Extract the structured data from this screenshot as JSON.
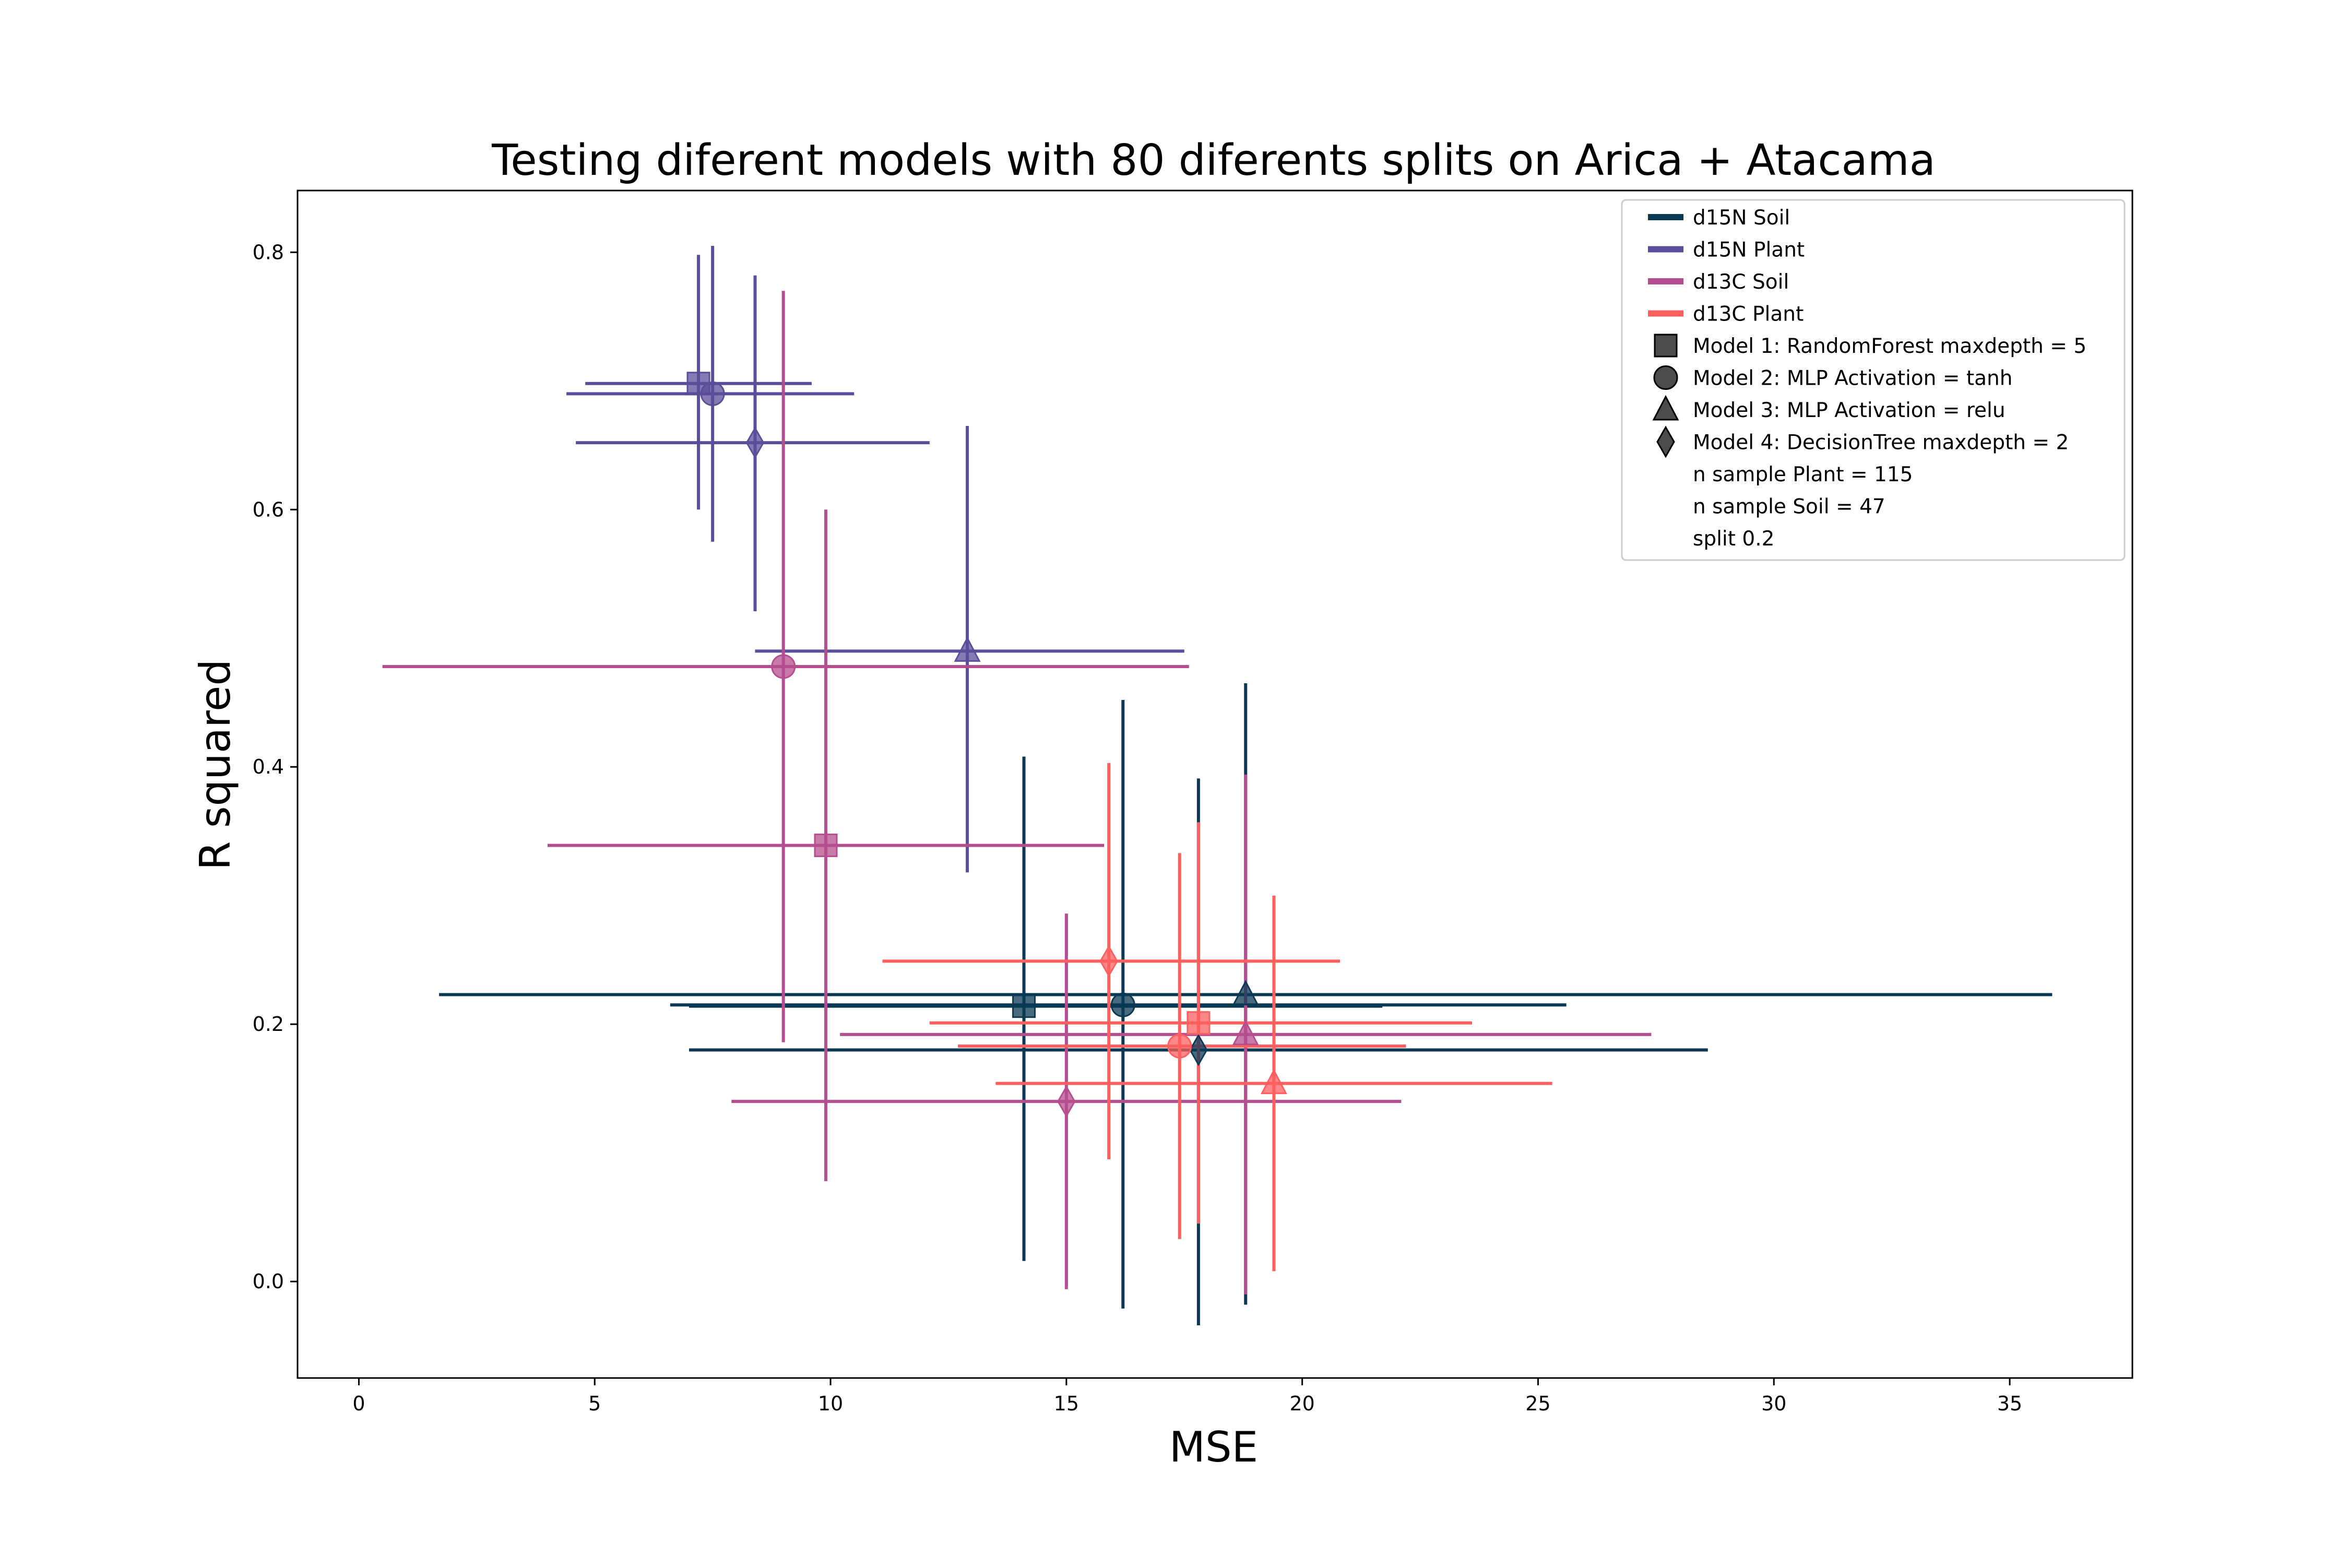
{
  "chart_data": {
    "type": "scatter",
    "title": "Testing diferent models with 80 diferents splits on Arica + Atacama",
    "xlabel": "MSE",
    "ylabel": "R squared",
    "xlim": [
      -1.3,
      37.6
    ],
    "ylim": [
      -0.075,
      0.848
    ],
    "xticks": [
      0,
      5,
      10,
      15,
      20,
      25,
      30,
      35
    ],
    "yticks": [
      0.0,
      0.2,
      0.4,
      0.6,
      0.8
    ],
    "xtick_labels": [
      "0",
      "5",
      "10",
      "15",
      "20",
      "25",
      "30",
      "35"
    ],
    "ytick_labels": [
      "0.0",
      "0.2",
      "0.4",
      "0.6",
      "0.8"
    ],
    "grid": false,
    "legend_position": "top-right",
    "series": [
      {
        "name": "d15N Soil",
        "color": "#0b3954",
        "points": [
          {
            "model": 1,
            "marker": "square",
            "x": 14.1,
            "y": 0.214,
            "xerr_low": 7.0,
            "xerr_high": 21.7,
            "yerr_low": 0.016,
            "yerr_high": 0.408
          },
          {
            "model": 2,
            "marker": "circle",
            "x": 16.2,
            "y": 0.215,
            "xerr_low": 6.6,
            "xerr_high": 25.6,
            "yerr_low": -0.021,
            "yerr_high": 0.452
          },
          {
            "model": 3,
            "marker": "triangle",
            "x": 18.8,
            "y": 0.223,
            "xerr_low": 1.7,
            "xerr_high": 35.9,
            "yerr_low": -0.018,
            "yerr_high": 0.465
          },
          {
            "model": 4,
            "marker": "diamond",
            "x": 17.8,
            "y": 0.18,
            "xerr_low": 7.0,
            "xerr_high": 28.6,
            "yerr_low": -0.034,
            "yerr_high": 0.391
          }
        ]
      },
      {
        "name": "d15N Plant",
        "color": "#5c4d9a",
        "points": [
          {
            "model": 1,
            "marker": "square",
            "x": 7.2,
            "y": 0.698,
            "xerr_low": 4.8,
            "xerr_high": 9.6,
            "yerr_low": 0.6,
            "yerr_high": 0.798
          },
          {
            "model": 2,
            "marker": "circle",
            "x": 7.5,
            "y": 0.69,
            "xerr_low": 4.4,
            "xerr_high": 10.5,
            "yerr_low": 0.575,
            "yerr_high": 0.805
          },
          {
            "model": 3,
            "marker": "triangle",
            "x": 12.9,
            "y": 0.49,
            "xerr_low": 8.4,
            "xerr_high": 17.5,
            "yerr_low": 0.318,
            "yerr_high": 0.665
          },
          {
            "model": 4,
            "marker": "diamond",
            "x": 8.4,
            "y": 0.652,
            "xerr_low": 4.6,
            "xerr_high": 12.1,
            "yerr_low": 0.521,
            "yerr_high": 0.782
          }
        ]
      },
      {
        "name": "d13C Soil",
        "color": "#b64d8e",
        "points": [
          {
            "model": 1,
            "marker": "square",
            "x": 9.9,
            "y": 0.339,
            "xerr_low": 4.0,
            "xerr_high": 15.8,
            "yerr_low": 0.078,
            "yerr_high": 0.6
          },
          {
            "model": 2,
            "marker": "circle",
            "x": 9.0,
            "y": 0.478,
            "xerr_low": 0.5,
            "xerr_high": 17.6,
            "yerr_low": 0.186,
            "yerr_high": 0.77
          },
          {
            "model": 3,
            "marker": "triangle",
            "x": 18.8,
            "y": 0.192,
            "xerr_low": 10.2,
            "xerr_high": 27.4,
            "yerr_low": -0.01,
            "yerr_high": 0.394
          },
          {
            "model": 4,
            "marker": "diamond",
            "x": 15.0,
            "y": 0.14,
            "xerr_low": 7.9,
            "xerr_high": 22.1,
            "yerr_low": -0.006,
            "yerr_high": 0.286
          }
        ]
      },
      {
        "name": "d13C Plant",
        "color": "#fe5f5f",
        "points": [
          {
            "model": 1,
            "marker": "square",
            "x": 17.8,
            "y": 0.201,
            "xerr_low": 12.1,
            "xerr_high": 23.6,
            "yerr_low": 0.045,
            "yerr_high": 0.357
          },
          {
            "model": 2,
            "marker": "circle",
            "x": 17.4,
            "y": 0.183,
            "xerr_low": 12.7,
            "xerr_high": 22.2,
            "yerr_low": 0.033,
            "yerr_high": 0.333
          },
          {
            "model": 3,
            "marker": "triangle",
            "x": 19.4,
            "y": 0.154,
            "xerr_low": 13.5,
            "xerr_high": 25.3,
            "yerr_low": 0.008,
            "yerr_high": 0.3
          },
          {
            "model": 4,
            "marker": "diamond",
            "x": 15.9,
            "y": 0.249,
            "xerr_low": 11.1,
            "xerr_high": 20.8,
            "yerr_low": 0.095,
            "yerr_high": 0.403
          }
        ]
      }
    ],
    "legend": {
      "series_entries": [
        "d15N Soil",
        "d15N Plant",
        "d13C Soil",
        "d13C Plant"
      ],
      "marker_entries": [
        {
          "marker": "square",
          "label": "Model 1: RandomForest maxdepth = 5"
        },
        {
          "marker": "circle",
          "label": "Model 2: MLP Activation = tanh"
        },
        {
          "marker": "triangle",
          "label": "Model 3: MLP Activation = relu"
        },
        {
          "marker": "diamond",
          "label": "Model 4: DecisionTree maxdepth = 2"
        }
      ],
      "text_entries": [
        "n sample Plant = 115",
        "n sample Soil = 47",
        "split 0.2"
      ]
    }
  }
}
